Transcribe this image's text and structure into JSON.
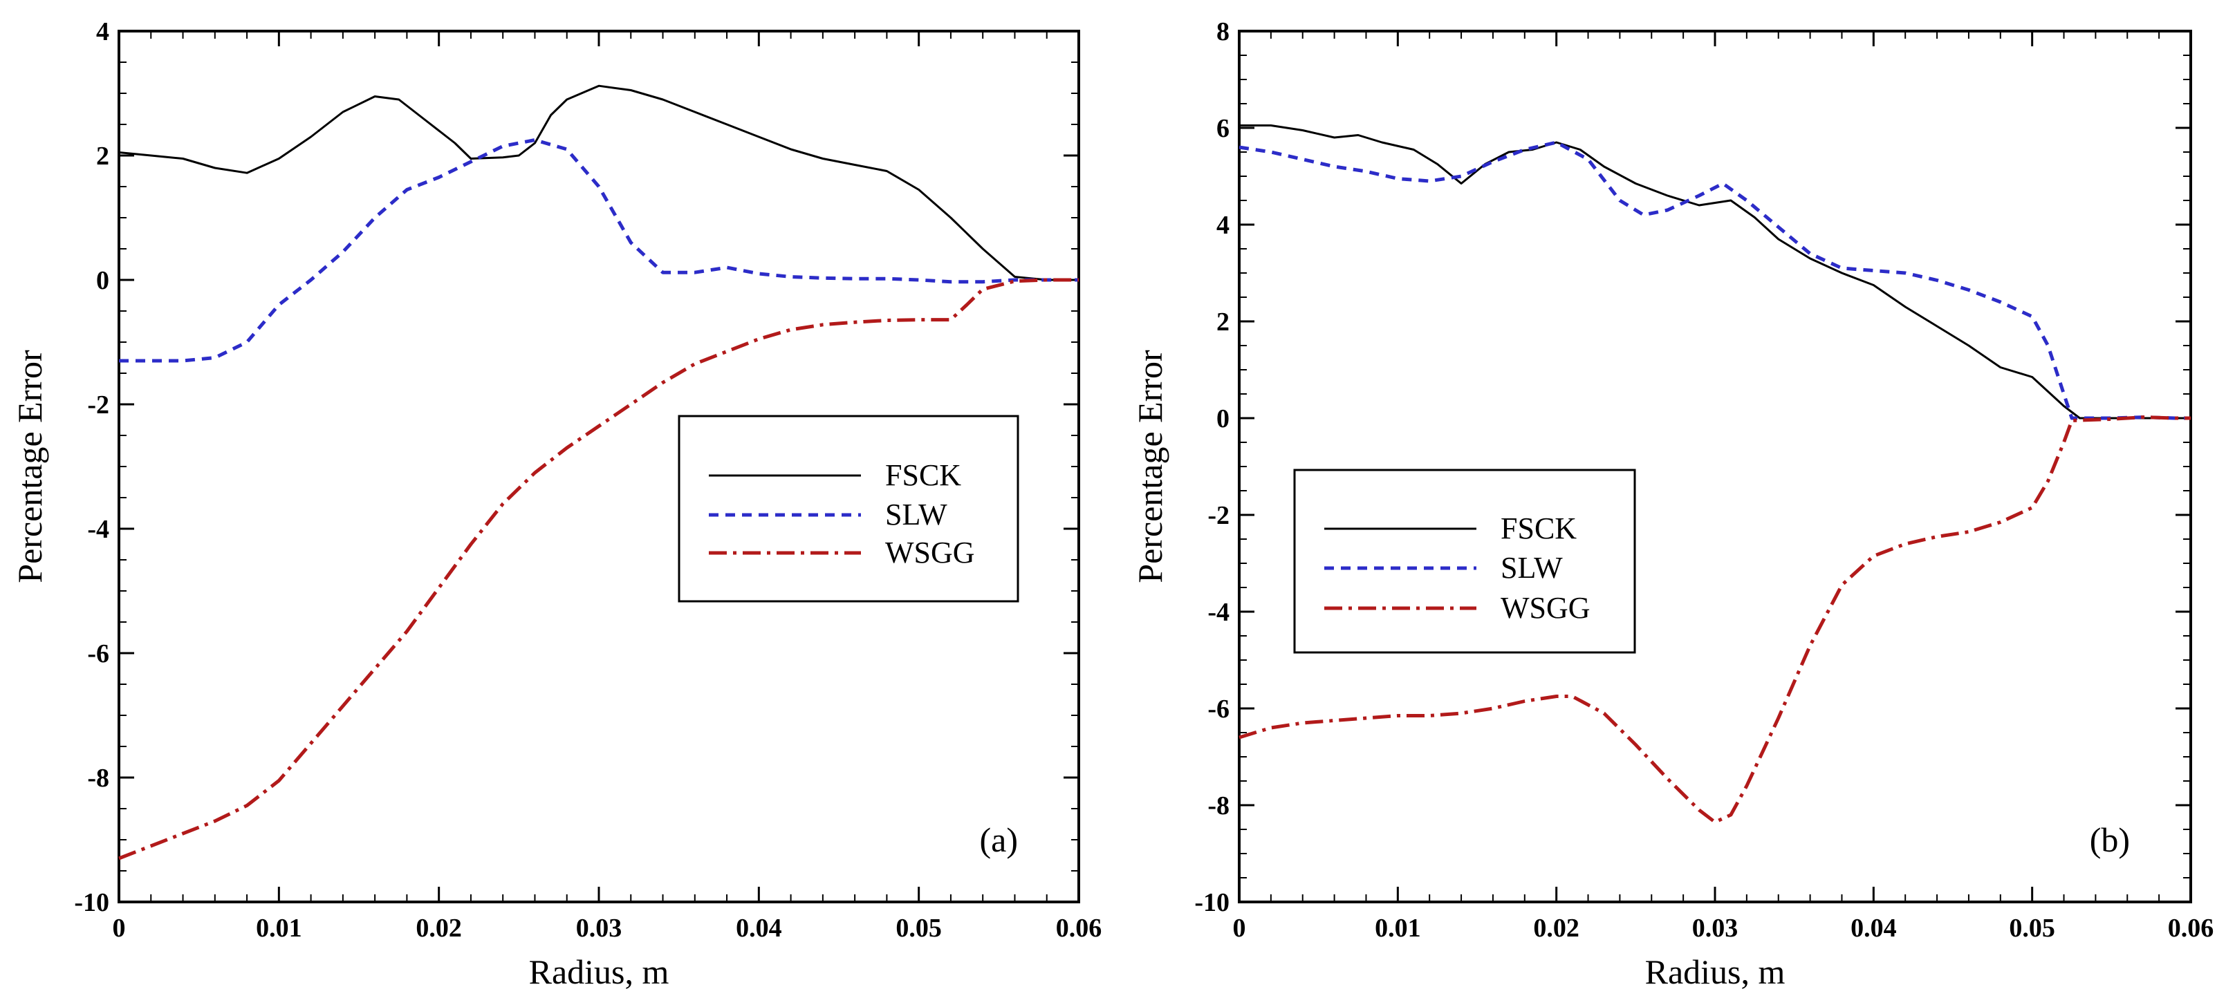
{
  "chart_data": [
    {
      "type": "line",
      "panel_label": "(a)",
      "xlabel": "Radius, m",
      "ylabel": "Percentage Error",
      "xlim": [
        0,
        0.06
      ],
      "ylim": [
        -10,
        4
      ],
      "xticks": [
        0,
        0.01,
        0.02,
        0.03,
        0.04,
        0.05,
        0.06
      ],
      "xtick_labels": [
        "0",
        "0.01",
        "0.02",
        "0.03",
        "0.04",
        "0.05",
        "0.06"
      ],
      "yticks": [
        -10,
        -8,
        -6,
        -4,
        -2,
        0,
        2,
        4
      ],
      "ytick_labels": [
        "-10",
        "-8",
        "-6",
        "-4",
        "-2",
        "0",
        "2",
        "4"
      ],
      "legend_position": "center-right",
      "series": [
        {
          "name": "FSCK",
          "color": "#000000",
          "style": "solid",
          "x": [
            0,
            0.002,
            0.004,
            0.006,
            0.008,
            0.01,
            0.012,
            0.014,
            0.016,
            0.0175,
            0.019,
            0.021,
            0.022,
            0.024,
            0.025,
            0.026,
            0.027,
            0.028,
            0.03,
            0.032,
            0.034,
            0.036,
            0.038,
            0.04,
            0.042,
            0.044,
            0.046,
            0.048,
            0.05,
            0.052,
            0.054,
            0.056,
            0.058,
            0.06
          ],
          "y": [
            2.05,
            2.0,
            1.95,
            1.8,
            1.72,
            1.95,
            2.3,
            2.7,
            2.95,
            2.9,
            2.6,
            2.2,
            1.95,
            1.97,
            2.0,
            2.2,
            2.65,
            2.9,
            3.12,
            3.05,
            2.9,
            2.7,
            2.5,
            2.3,
            2.1,
            1.95,
            1.85,
            1.75,
            1.45,
            1.0,
            0.5,
            0.05,
            0.0,
            0.0
          ]
        },
        {
          "name": "SLW",
          "color": "#2c2cc8",
          "style": "dashed",
          "x": [
            0,
            0.002,
            0.004,
            0.006,
            0.008,
            0.01,
            0.012,
            0.014,
            0.016,
            0.018,
            0.02,
            0.022,
            0.024,
            0.026,
            0.028,
            0.03,
            0.032,
            0.034,
            0.036,
            0.038,
            0.04,
            0.042,
            0.044,
            0.046,
            0.048,
            0.05,
            0.052,
            0.054,
            0.056,
            0.058,
            0.06
          ],
          "y": [
            -1.3,
            -1.3,
            -1.3,
            -1.25,
            -1.0,
            -0.4,
            0.0,
            0.45,
            1.0,
            1.45,
            1.65,
            1.9,
            2.15,
            2.25,
            2.1,
            1.5,
            0.6,
            0.12,
            0.12,
            0.2,
            0.1,
            0.05,
            0.03,
            0.02,
            0.02,
            0.0,
            -0.03,
            -0.03,
            0.0,
            0.0,
            0.0
          ]
        },
        {
          "name": "WSGG",
          "color": "#b21a1a",
          "style": "dashdot",
          "x": [
            0,
            0.002,
            0.004,
            0.006,
            0.008,
            0.01,
            0.012,
            0.014,
            0.016,
            0.018,
            0.02,
            0.022,
            0.024,
            0.026,
            0.028,
            0.03,
            0.032,
            0.034,
            0.036,
            0.038,
            0.04,
            0.042,
            0.044,
            0.046,
            0.048,
            0.05,
            0.052,
            0.053,
            0.054,
            0.056,
            0.058,
            0.06
          ],
          "y": [
            -9.3,
            -9.1,
            -8.9,
            -8.7,
            -8.45,
            -8.05,
            -7.45,
            -6.85,
            -6.25,
            -5.65,
            -4.95,
            -4.25,
            -3.6,
            -3.1,
            -2.7,
            -2.35,
            -2.0,
            -1.65,
            -1.35,
            -1.15,
            -0.95,
            -0.8,
            -0.72,
            -0.68,
            -0.65,
            -0.64,
            -0.64,
            -0.4,
            -0.15,
            -0.02,
            0.0,
            0.0
          ]
        }
      ]
    },
    {
      "type": "line",
      "panel_label": "(b)",
      "xlabel": "Radius, m",
      "ylabel": "Percentage Error",
      "xlim": [
        0,
        0.06
      ],
      "ylim": [
        -10,
        8
      ],
      "xticks": [
        0,
        0.01,
        0.02,
        0.03,
        0.04,
        0.05,
        0.06
      ],
      "xtick_labels": [
        "0",
        "0.01",
        "0.02",
        "0.03",
        "0.04",
        "0.05",
        "0.06"
      ],
      "yticks": [
        -10,
        -8,
        -6,
        -4,
        -2,
        0,
        2,
        4,
        6,
        8
      ],
      "ytick_labels": [
        "-10",
        "-8",
        "-6",
        "-4",
        "-2",
        "0",
        "2",
        "4",
        "6",
        "8"
      ],
      "legend_position": "center-left",
      "series": [
        {
          "name": "FSCK",
          "color": "#000000",
          "style": "solid",
          "x": [
            0,
            0.002,
            0.004,
            0.006,
            0.0075,
            0.009,
            0.011,
            0.0125,
            0.014,
            0.0155,
            0.017,
            0.0185,
            0.02,
            0.0215,
            0.023,
            0.025,
            0.027,
            0.029,
            0.031,
            0.0325,
            0.034,
            0.036,
            0.038,
            0.04,
            0.042,
            0.044,
            0.046,
            0.048,
            0.05,
            0.051,
            0.052,
            0.053,
            0.055,
            0.057,
            0.059,
            0.06
          ],
          "y": [
            6.05,
            6.05,
            5.95,
            5.8,
            5.85,
            5.7,
            5.55,
            5.25,
            4.85,
            5.25,
            5.5,
            5.55,
            5.7,
            5.55,
            5.2,
            4.85,
            4.6,
            4.4,
            4.5,
            4.15,
            3.7,
            3.3,
            3.0,
            2.75,
            2.3,
            1.9,
            1.5,
            1.05,
            0.85,
            0.55,
            0.25,
            0.0,
            0.0,
            0.0,
            0.0,
            0.0
          ]
        },
        {
          "name": "SLW",
          "color": "#2c2cc8",
          "style": "dashed",
          "x": [
            0,
            0.002,
            0.004,
            0.006,
            0.008,
            0.01,
            0.012,
            0.014,
            0.016,
            0.018,
            0.02,
            0.022,
            0.024,
            0.0255,
            0.027,
            0.029,
            0.0305,
            0.032,
            0.034,
            0.036,
            0.038,
            0.04,
            0.042,
            0.044,
            0.046,
            0.048,
            0.05,
            0.051,
            0.052,
            0.0525,
            0.055,
            0.057,
            0.059,
            0.06
          ],
          "y": [
            5.6,
            5.5,
            5.35,
            5.2,
            5.1,
            4.95,
            4.9,
            5.0,
            5.3,
            5.55,
            5.7,
            5.35,
            4.5,
            4.2,
            4.3,
            4.6,
            4.85,
            4.5,
            3.95,
            3.4,
            3.1,
            3.05,
            3.0,
            2.85,
            2.65,
            2.4,
            2.1,
            1.5,
            0.5,
            0.0,
            0.0,
            0.02,
            0.0,
            0.0
          ]
        },
        {
          "name": "WSGG",
          "color": "#b21a1a",
          "style": "dashdot",
          "x": [
            0,
            0.002,
            0.004,
            0.006,
            0.008,
            0.01,
            0.012,
            0.014,
            0.016,
            0.018,
            0.02,
            0.021,
            0.023,
            0.025,
            0.027,
            0.029,
            0.03,
            0.031,
            0.032,
            0.034,
            0.036,
            0.038,
            0.04,
            0.042,
            0.044,
            0.046,
            0.048,
            0.05,
            0.051,
            0.052,
            0.0525,
            0.055,
            0.057,
            0.059,
            0.06
          ],
          "y": [
            -6.6,
            -6.4,
            -6.3,
            -6.25,
            -6.2,
            -6.15,
            -6.15,
            -6.1,
            -6.0,
            -5.85,
            -5.75,
            -5.75,
            -6.1,
            -6.75,
            -7.45,
            -8.1,
            -8.35,
            -8.2,
            -7.6,
            -6.2,
            -4.7,
            -3.45,
            -2.85,
            -2.6,
            -2.45,
            -2.35,
            -2.15,
            -1.85,
            -1.3,
            -0.5,
            -0.05,
            -0.02,
            0.02,
            0.0,
            0.0
          ]
        }
      ]
    }
  ]
}
